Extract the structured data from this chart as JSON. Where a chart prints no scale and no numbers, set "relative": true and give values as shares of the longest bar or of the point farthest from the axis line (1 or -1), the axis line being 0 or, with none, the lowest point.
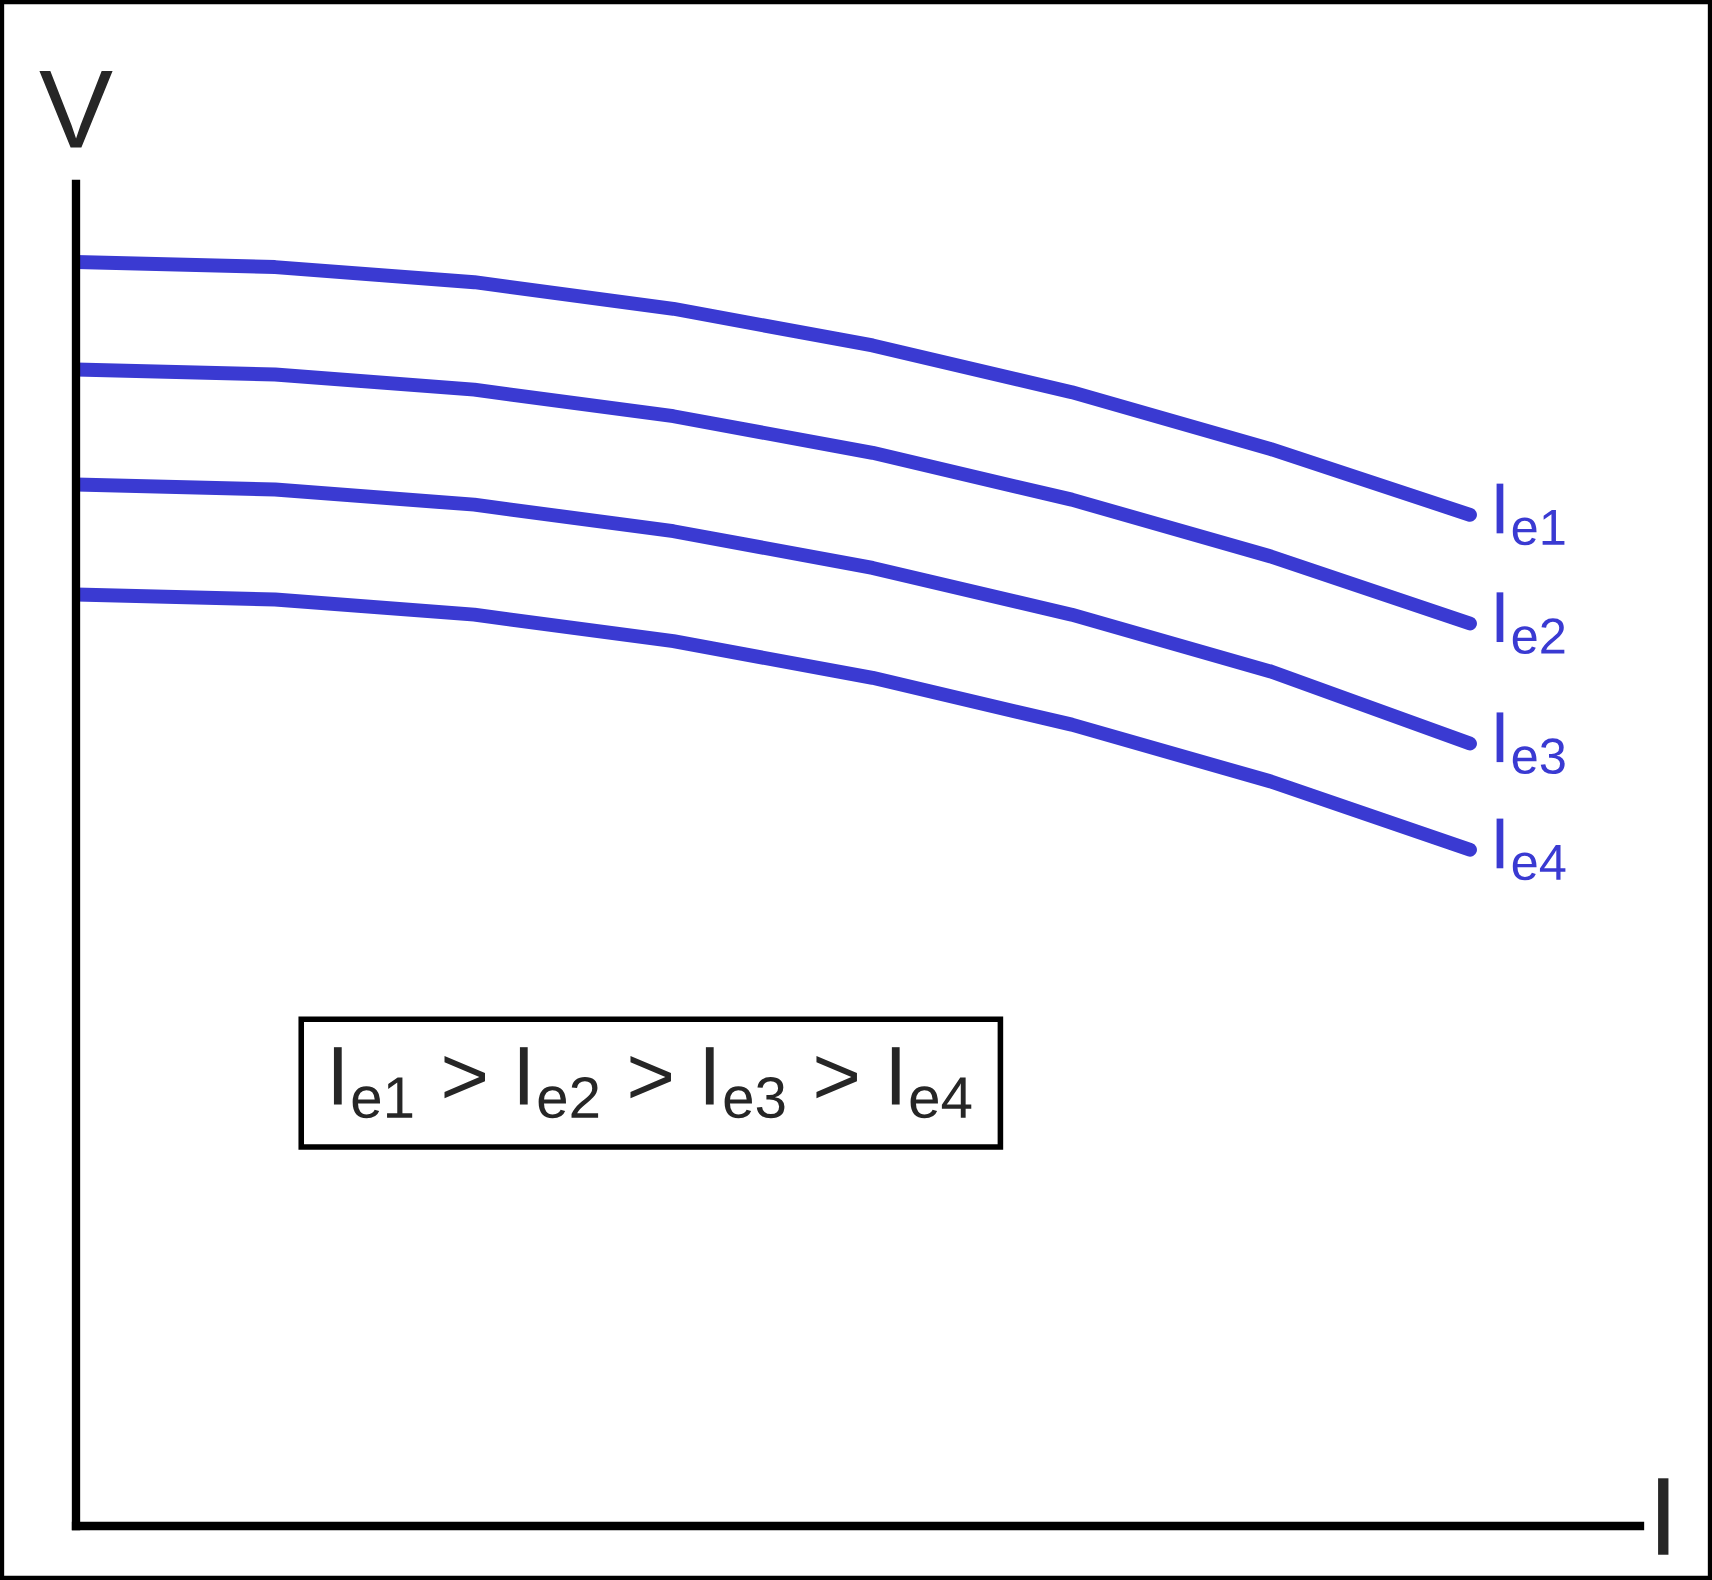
{
  "chart_data": {
    "type": "line",
    "relative": true,
    "xlabel": "I",
    "ylabel": "V",
    "categories": [
      null,
      null,
      null,
      null,
      null,
      null,
      null,
      null
    ],
    "series": [
      {
        "name": "I$_{e1}$",
        "color": "#3a3ad2",
        "values": [
          1.0,
          0.996,
          0.984,
          0.963,
          0.934,
          0.897,
          0.852,
          0.8
        ]
      },
      {
        "name": "I$_{e2}$",
        "color": "#3a3ad2",
        "values": [
          0.915,
          0.911,
          0.899,
          0.878,
          0.849,
          0.812,
          0.767,
          0.714
        ]
      },
      {
        "name": "I$_{e3}$",
        "color": "#3a3ad2",
        "values": [
          0.824,
          0.82,
          0.808,
          0.787,
          0.758,
          0.721,
          0.676,
          0.619
        ]
      },
      {
        "name": "I$_{e4}$",
        "color": "#3a3ad2",
        "values": [
          0.737,
          0.733,
          0.721,
          0.7,
          0.671,
          0.634,
          0.589,
          0.535
        ]
      }
    ],
    "annotations": [
      "I$_{e1}$ > I$_{e2}$ > I$_{e3}$ > I$_{e4}$"
    ],
    "grid": false,
    "legend": false,
    "marker": "none",
    "line_style": "solid"
  }
}
